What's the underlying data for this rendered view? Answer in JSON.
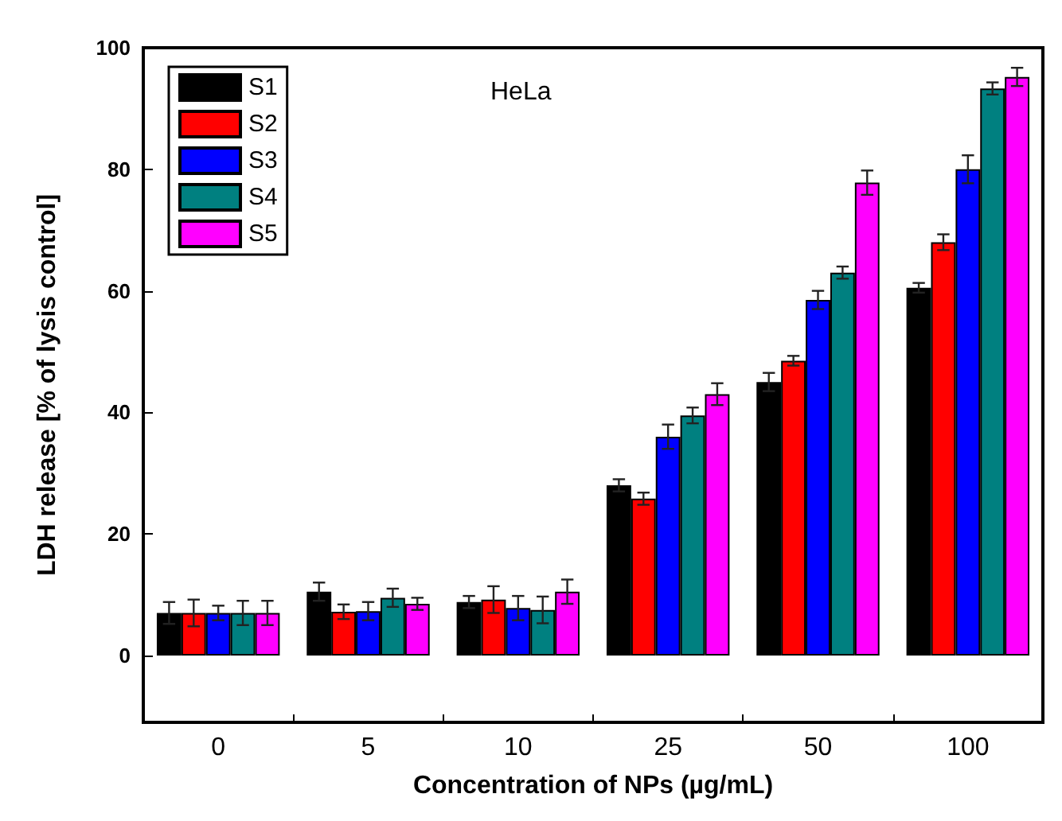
{
  "chart_data": {
    "type": "bar",
    "xlabel": "Concentration of NPs (µg/mL)",
    "ylabel": "LDH release [% of lysis control]",
    "annotations": [
      "HeLa"
    ],
    "categories": [
      "0",
      "5",
      "10",
      "25",
      "50",
      "100"
    ],
    "series": [
      {
        "name": "S1",
        "color": "#000000",
        "values": [
          7,
          10.5,
          8.8,
          28,
          45,
          60.5
        ],
        "errors": [
          1.8,
          1.5,
          1,
          1,
          1.5,
          0.8
        ]
      },
      {
        "name": "S2",
        "color": "#ff0000",
        "values": [
          7,
          7.2,
          9.2,
          25.8,
          48.5,
          68
        ],
        "errors": [
          2.2,
          1.2,
          2.2,
          1,
          0.8,
          1.3
        ]
      },
      {
        "name": "S3",
        "color": "#0000ff",
        "values": [
          7,
          7.3,
          7.8,
          36,
          58.5,
          80
        ],
        "errors": [
          1.2,
          1.5,
          2,
          2,
          1.5,
          2.3
        ]
      },
      {
        "name": "S4",
        "color": "#008080",
        "values": [
          7,
          9.5,
          7.5,
          39.5,
          63,
          93.3
        ],
        "errors": [
          2,
          1.5,
          2.2,
          1.3,
          1,
          1
        ]
      },
      {
        "name": "S5",
        "color": "#ff00ff",
        "values": [
          7,
          8.5,
          10.5,
          43,
          77.8,
          95.2
        ],
        "errors": [
          2,
          1,
          2,
          1.8,
          2,
          1.5
        ]
      }
    ],
    "ylim": [
      -11,
      100
    ],
    "yticks": [
      0,
      20,
      40,
      60,
      80,
      100
    ],
    "grid": false,
    "legend": "top left"
  }
}
